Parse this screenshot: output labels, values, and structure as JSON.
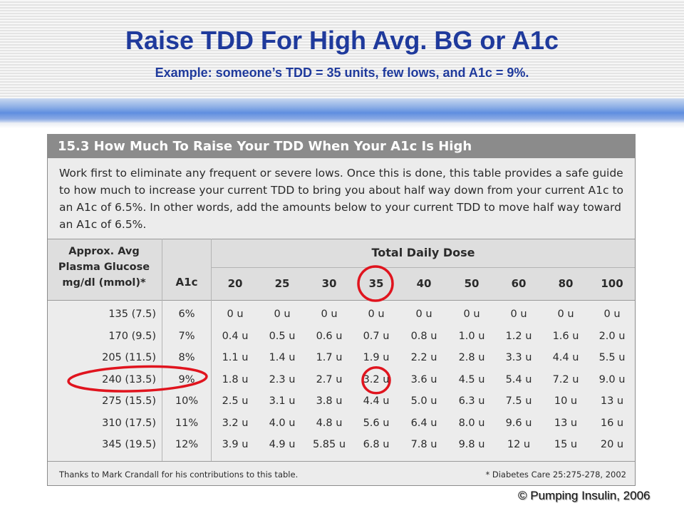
{
  "slide": {
    "title": "Raise TDD For High Avg. BG or A1c",
    "subtitle": "Example: someone’s TDD = 35 units, few lows, and A1c = 9%.",
    "copyright": "© Pumping Insulin, 2006"
  },
  "table": {
    "heading": "15.3 How Much To Raise Your TDD When Your A1c Is High",
    "intro": "Work first to eliminate any frequent or severe lows. Once this is done, this table provides a safe guide to how much to increase your current TDD to bring you about half way down from your current A1c to an A1c of 6.5%. In other words, add the amounts below to your current TDD to move half way toward an A1c of 6.5%.",
    "row_header": [
      "Approx. Avg",
      "Plasma Glucose",
      "mg/dl (mmol)*"
    ],
    "a1c_header": "A1c",
    "dose_group_header": "Total Daily Dose",
    "doses": [
      "20",
      "25",
      "30",
      "35",
      "40",
      "50",
      "60",
      "80",
      "100"
    ],
    "rows": [
      {
        "glucose": "135 (7.5)",
        "a1c": "6%",
        "values": [
          "0 u",
          "0 u",
          "0 u",
          "0 u",
          "0 u",
          "0 u",
          "0 u",
          "0 u",
          "0 u"
        ]
      },
      {
        "glucose": "170 (9.5)",
        "a1c": "7%",
        "values": [
          "0.4 u",
          "0.5 u",
          "0.6 u",
          "0.7 u",
          "0.8 u",
          "1.0 u",
          "1.2 u",
          "1.6 u",
          "2.0 u"
        ]
      },
      {
        "glucose": "205 (11.5)",
        "a1c": "8%",
        "values": [
          "1.1 u",
          "1.4 u",
          "1.7 u",
          "1.9 u",
          "2.2 u",
          "2.8 u",
          "3.3 u",
          "4.4 u",
          "5.5 u"
        ]
      },
      {
        "glucose": "240 (13.5)",
        "a1c": "9%",
        "values": [
          "1.8 u",
          "2.3 u",
          "2.7 u",
          "3.2 u",
          "3.6 u",
          "4.5 u",
          "5.4 u",
          "7.2 u",
          "9.0 u"
        ]
      },
      {
        "glucose": "275 (15.5)",
        "a1c": "10%",
        "values": [
          "2.5 u",
          "3.1 u",
          "3.8 u",
          "4.4 u",
          "5.0 u",
          "6.3 u",
          "7.5 u",
          "10 u",
          "13 u"
        ]
      },
      {
        "glucose": "310 (17.5)",
        "a1c": "11%",
        "values": [
          "3.2 u",
          "4.0 u",
          "4.8 u",
          "5.6 u",
          "6.4 u",
          "8.0 u",
          "9.6 u",
          "13 u",
          "16 u"
        ]
      },
      {
        "glucose": "345 (19.5)",
        "a1c": "12%",
        "values": [
          "3.9 u",
          "4.9 u",
          "5.85 u",
          "6.8 u",
          "7.8 u",
          "9.8 u",
          "12 u",
          "15 u",
          "20 u"
        ]
      }
    ],
    "footnote_left": "Thanks to Mark Crandall for his contributions to this table.",
    "footnote_right": "* Diabetes Care 25:275-278, 2002"
  },
  "highlights": {
    "color": "#e0141e",
    "column_dose": "35",
    "row_a1c": "9%",
    "cell_value": "3.2 u"
  },
  "colors": {
    "title": "#1f3a9c",
    "table_heading_bg": "#8b8b8b",
    "table_bg": "#ececec"
  }
}
